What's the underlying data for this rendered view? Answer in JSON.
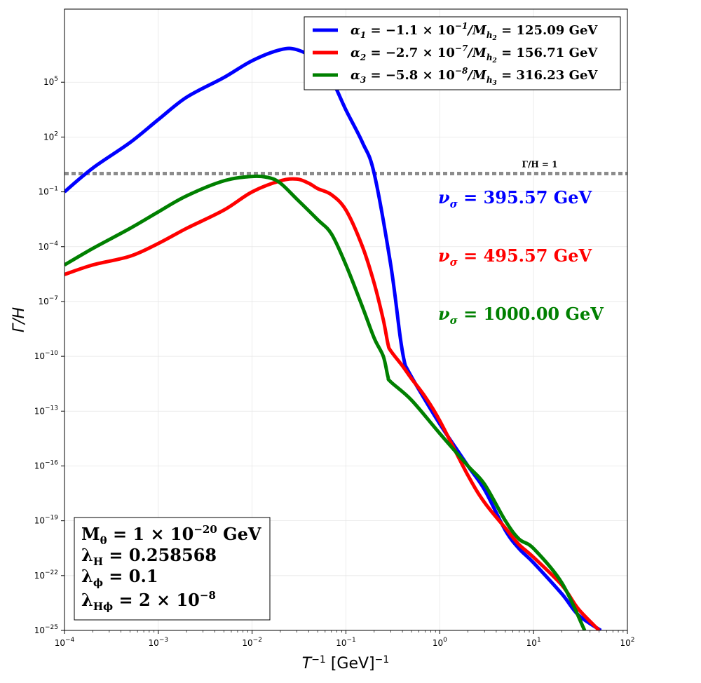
{
  "chart_data": {
    "type": "line",
    "xlabel": "T⁻¹ [GeV]⁻¹",
    "ylabel": "Γ/H",
    "xscale": "log",
    "yscale": "log",
    "xlim": [
      0.0001,
      100
    ],
    "ylim": [
      1e-25,
      1000000000.0
    ],
    "grid": true,
    "legend_position": "top-right",
    "x_ticks": [
      {
        "value": 0.0001,
        "base": "10",
        "exp": "−4"
      },
      {
        "value": 0.001,
        "base": "10",
        "exp": "−3"
      },
      {
        "value": 0.01,
        "base": "10",
        "exp": "−2"
      },
      {
        "value": 0.1,
        "base": "10",
        "exp": "−1"
      },
      {
        "value": 1,
        "base": "10",
        "exp": "0"
      },
      {
        "value": 10,
        "base": "10",
        "exp": "1"
      },
      {
        "value": 100,
        "base": "10",
        "exp": "2"
      }
    ],
    "y_ticks": [
      {
        "value": 100000.0,
        "base": "10",
        "exp": "5"
      },
      {
        "value": 100.0,
        "base": "10",
        "exp": "2"
      },
      {
        "value": 0.1,
        "base": "10",
        "exp": "−1"
      },
      {
        "value": 0.0001,
        "base": "10",
        "exp": "−4"
      },
      {
        "value": 1e-07,
        "base": "10",
        "exp": "−7"
      },
      {
        "value": 1e-10,
        "base": "10",
        "exp": "−10"
      },
      {
        "value": 1e-13,
        "base": "10",
        "exp": "−13"
      },
      {
        "value": 1e-16,
        "base": "10",
        "exp": "−16"
      },
      {
        "value": 1e-19,
        "base": "10",
        "exp": "−19"
      },
      {
        "value": 1e-22,
        "base": "10",
        "exp": "−22"
      },
      {
        "value": 1e-25,
        "base": "10",
        "exp": "−25"
      }
    ],
    "reference_line": {
      "y": 1,
      "label": "Γ/H = 1",
      "color": "#8c8c8c",
      "style": "dotted"
    },
    "series": [
      {
        "name": "α₁ = −1.1 × 10⁻¹/M_h₂ = 125.09 GeV",
        "color": "#0000ff",
        "x": [
          0.0001,
          0.0002,
          0.0005,
          0.001,
          0.002,
          0.005,
          0.01,
          0.02,
          0.03,
          0.05,
          0.07,
          0.1,
          0.15,
          0.2,
          0.3,
          0.38,
          0.42,
          0.45,
          0.6,
          1,
          2,
          3,
          5,
          7,
          10,
          20,
          30,
          52
        ],
        "y": [
          0.1,
          2,
          50,
          900,
          15000,
          180000,
          1500000,
          6000000,
          6000000,
          1500000,
          150000,
          3000,
          50,
          1,
          1e-05,
          1e-09,
          5e-11,
          2e-11,
          1.5e-12,
          2e-14,
          1e-16,
          5e-18,
          3e-20,
          3e-21,
          5e-22,
          1e-23,
          7e-25,
          1e-25
        ]
      },
      {
        "name": "α₂ = −2.7 × 10⁻⁷/M_h₂ = 156.71 GeV",
        "color": "#ff0000",
        "x": [
          0.0001,
          0.0002,
          0.0005,
          0.001,
          0.002,
          0.005,
          0.01,
          0.02,
          0.03,
          0.04,
          0.05,
          0.07,
          0.1,
          0.15,
          0.2,
          0.25,
          0.28,
          0.3,
          0.4,
          0.5,
          0.7,
          1,
          2,
          3,
          5,
          7,
          10,
          20,
          30,
          50
        ],
        "y": [
          3e-06,
          1e-05,
          3e-05,
          0.00015,
          0.001,
          0.01,
          0.1,
          0.4,
          0.5,
          0.3,
          0.15,
          0.07,
          0.01,
          0.0001,
          1e-06,
          1e-08,
          5e-10,
          2e-10,
          3e-11,
          6e-12,
          6e-13,
          3e-14,
          3e-17,
          1e-18,
          4e-20,
          5e-21,
          1e-21,
          3e-23,
          1.5e-24,
          1e-25
        ]
      },
      {
        "name": "α₃ = −5.8 × 10⁻⁸/M_h₃ = 316.23 GeV",
        "color": "#008000",
        "x": [
          0.0001,
          0.0002,
          0.0005,
          0.001,
          0.002,
          0.005,
          0.01,
          0.015,
          0.02,
          0.03,
          0.05,
          0.07,
          0.1,
          0.15,
          0.2,
          0.25,
          0.28,
          0.3,
          0.5,
          1,
          2,
          3,
          5,
          7,
          10,
          20,
          35
        ],
        "y": [
          1e-05,
          8e-05,
          0.001,
          0.008,
          0.06,
          0.4,
          0.7,
          0.6,
          0.3,
          0.04,
          0.003,
          0.0005,
          1e-05,
          5e-08,
          1e-09,
          1e-10,
          8e-12,
          4e-12,
          4e-13,
          6e-15,
          1e-16,
          1e-17,
          1e-19,
          1e-20,
          3e-21,
          4e-23,
          1e-25
        ]
      }
    ],
    "annotations": [
      {
        "text": "νσ = 395.57 GeV",
        "color": "#0000ff"
      },
      {
        "text": "νσ = 495.57 GeV",
        "color": "#ff0000"
      },
      {
        "text": "νσ = 1000.00 GeV",
        "color": "#008000"
      }
    ],
    "params_box": [
      {
        "name": "M",
        "sub": "θ",
        "eq": " = 1 × 10",
        "sup": "−20",
        "tail": " GeV"
      },
      {
        "name": "λ",
        "sub": "H",
        "eq": " = 0.258568",
        "sup": "",
        "tail": ""
      },
      {
        "name": "λ",
        "sub": "ϕ",
        "eq": " = 0.1",
        "sup": "",
        "tail": ""
      },
      {
        "name": "λ",
        "sub": "Hϕ",
        "eq": " = 2 × 10",
        "sup": "−8",
        "tail": ""
      }
    ]
  }
}
